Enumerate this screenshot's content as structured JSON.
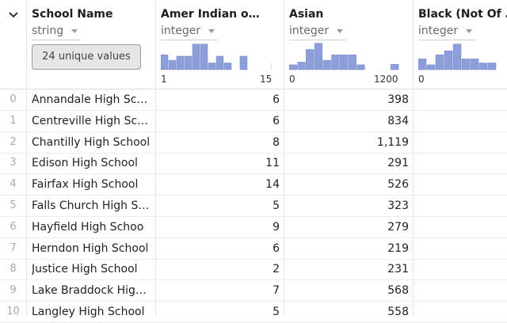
{
  "columns": [
    {
      "title": "School Name",
      "type": "string",
      "summary": "24 unique values"
    },
    {
      "title": "Amer Indian o…",
      "type": "integer",
      "axis_min": "1",
      "axis_max": "15",
      "hist": [
        0.55,
        0.35,
        0.5,
        0.5,
        0.95,
        0.95,
        0.25,
        0.5,
        0.25,
        0,
        0.5,
        0,
        0,
        0,
        0.25
      ]
    },
    {
      "title": "Asian",
      "type": "integer",
      "axis_min": "0",
      "axis_max": "1200",
      "hist": [
        0.18,
        0.28,
        0.75,
        0.98,
        0.35,
        0.55,
        0.55,
        0.55,
        0.18,
        0,
        0,
        0,
        0.2
      ]
    },
    {
      "title": "Black (Not Of …",
      "type": "integer",
      "axis_min": "0",
      "axis_max": "",
      "hist": [
        0.4,
        0.18,
        0.55,
        0.7,
        0.95,
        0.4,
        0.4,
        0.25,
        0.25
      ]
    }
  ],
  "rows": [
    {
      "idx": "0",
      "name": "Annandale High Sch…",
      "amer": "6",
      "asian": "398"
    },
    {
      "idx": "1",
      "name": "Centreville High Scho…",
      "amer": "6",
      "asian": "834"
    },
    {
      "idx": "2",
      "name": "Chantilly High School",
      "amer": "8",
      "asian": "1,119"
    },
    {
      "idx": "3",
      "name": "Edison High School",
      "amer": "11",
      "asian": "291"
    },
    {
      "idx": "4",
      "name": "Fairfax High School",
      "amer": "14",
      "asian": "526"
    },
    {
      "idx": "5",
      "name": "Falls Church High Sc…",
      "amer": "5",
      "asian": "323"
    },
    {
      "idx": "6",
      "name": "Hayfield High Schoo",
      "amer": "9",
      "asian": "279"
    },
    {
      "idx": "7",
      "name": "Herndon High School",
      "amer": "6",
      "asian": "219"
    },
    {
      "idx": "8",
      "name": "Justice High School",
      "amer": "2",
      "asian": "231"
    },
    {
      "idx": "9",
      "name": "Lake Braddock High …",
      "amer": "7",
      "asian": "568"
    },
    {
      "idx": "10",
      "name": "Langley High School",
      "amer": "5",
      "asian": "558"
    }
  ],
  "colors": {
    "hist_bar": "#8c9fdb",
    "hist_bar_stroke": "#7184c9"
  },
  "icons": {
    "collapse": "chevron-down-icon",
    "type_menu": "caret-down-icon"
  }
}
